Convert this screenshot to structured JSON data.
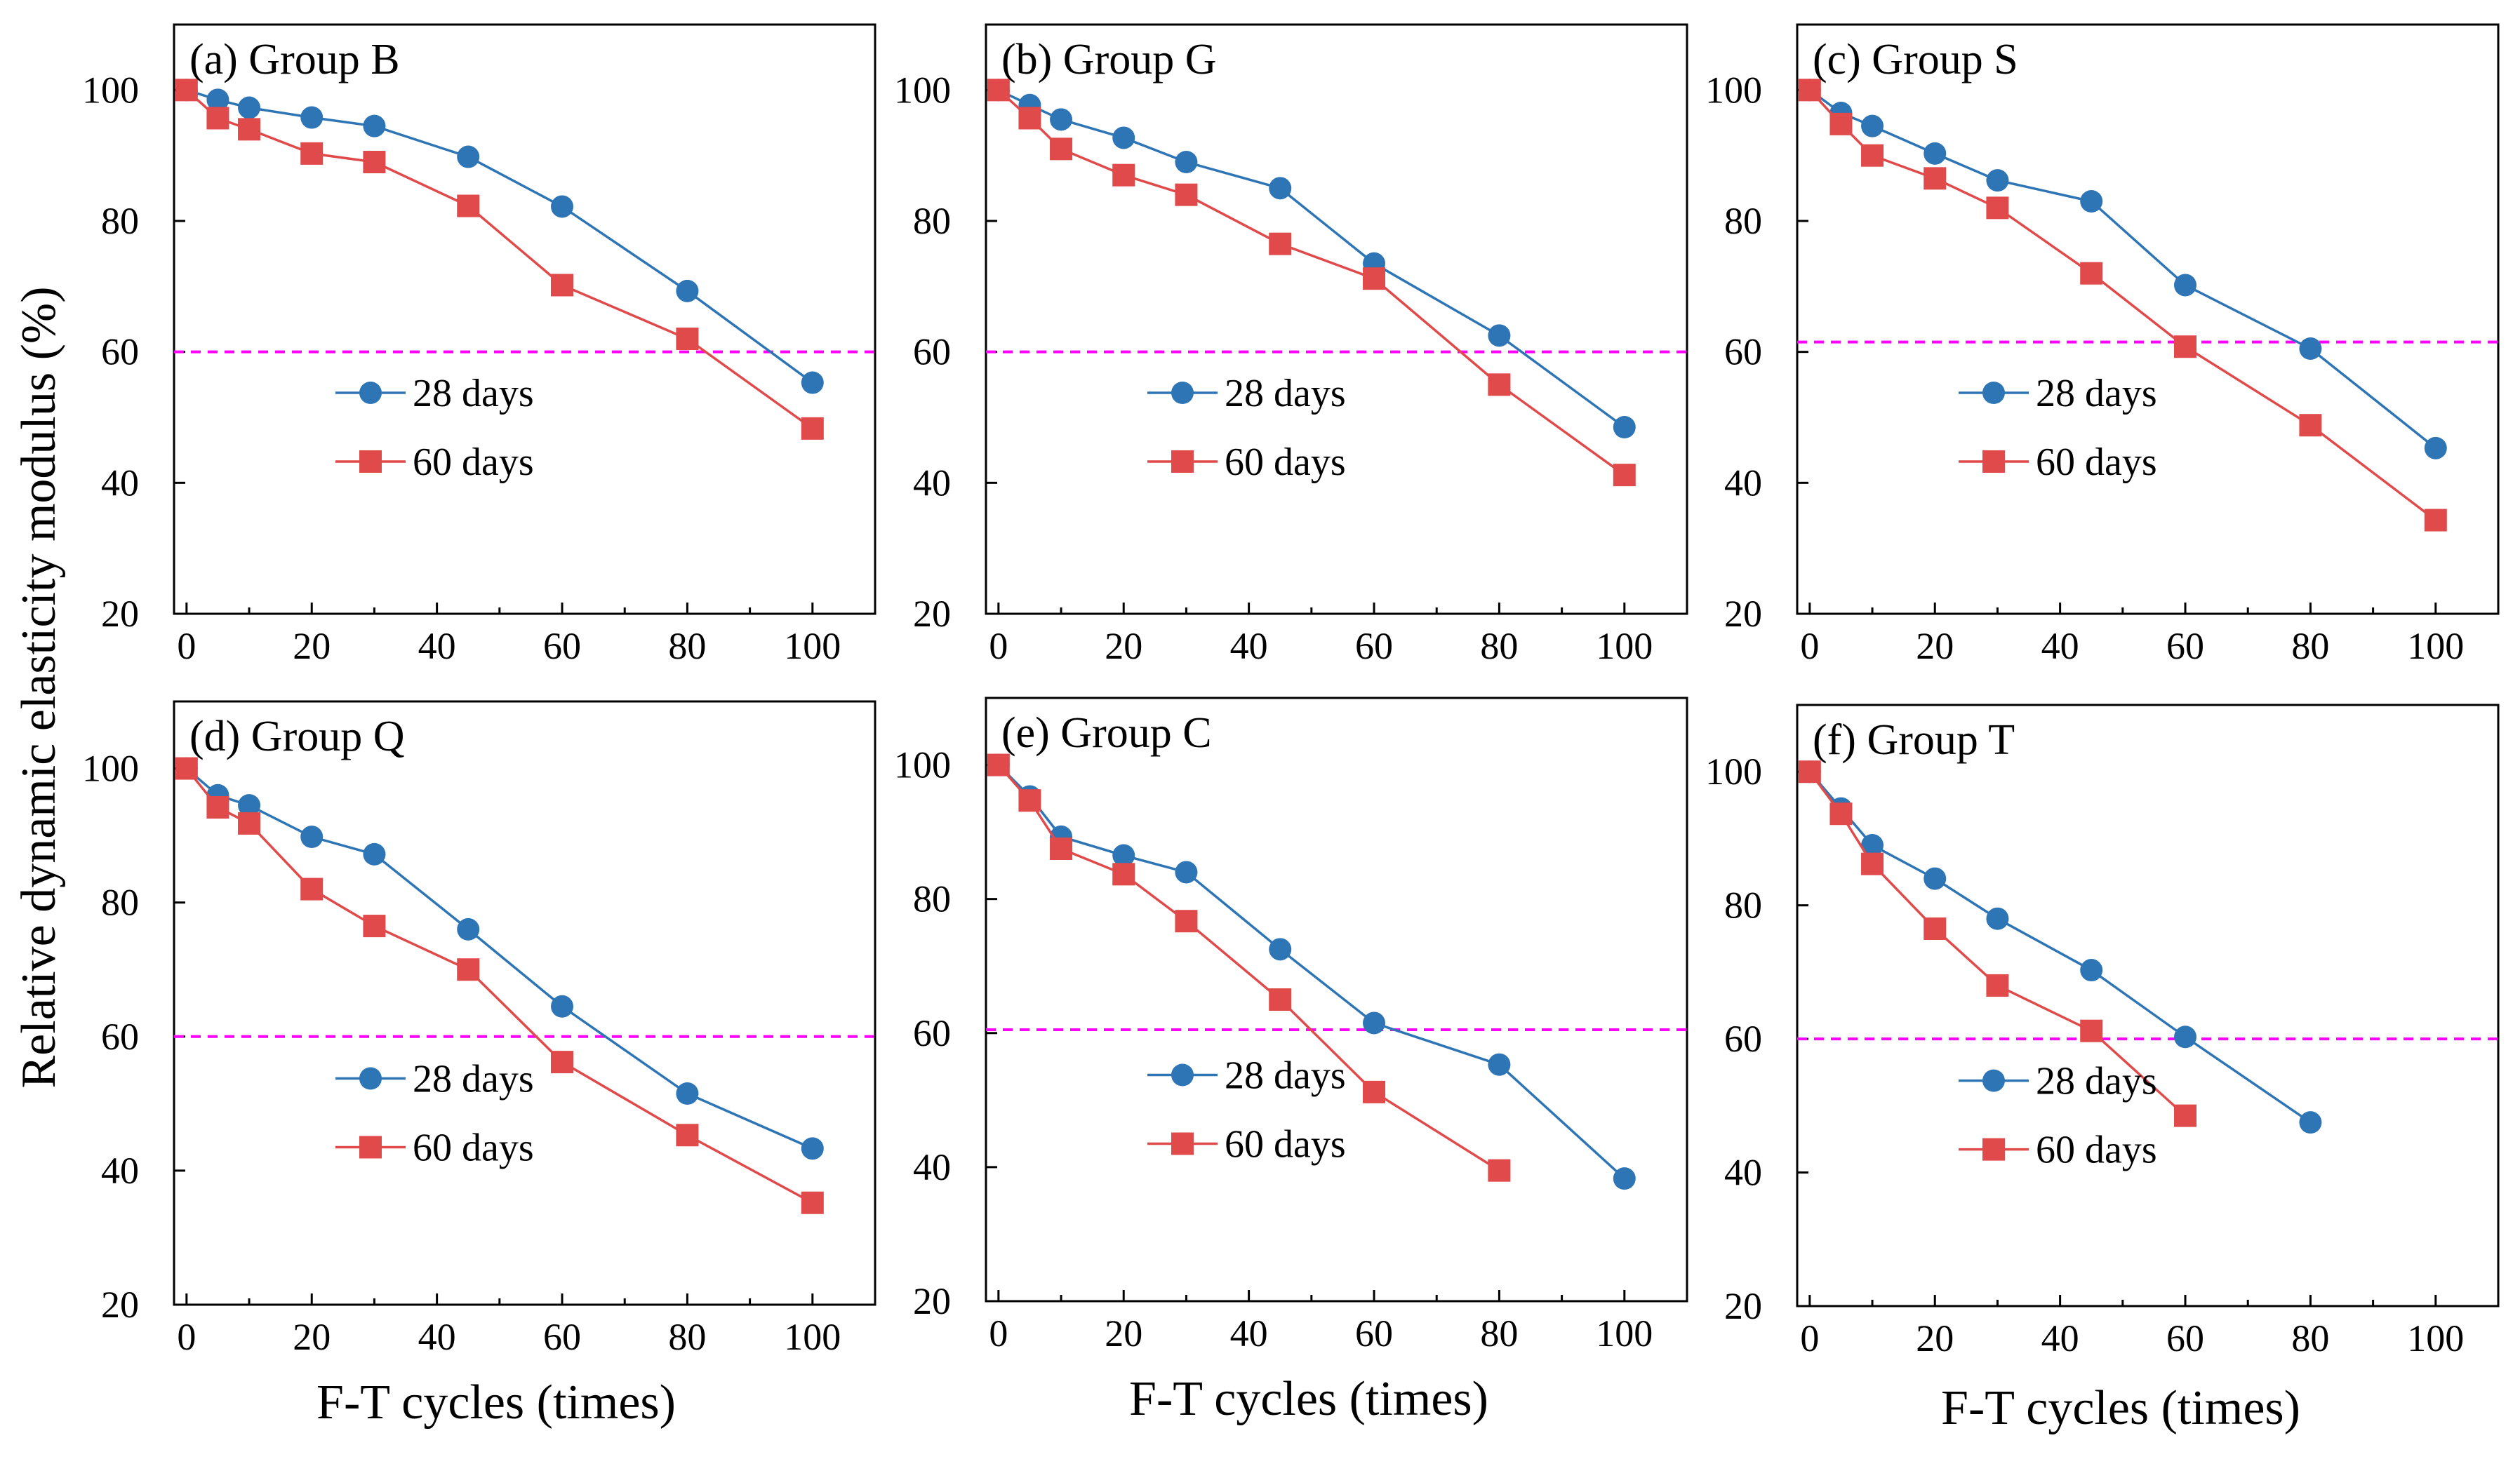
{
  "figure": {
    "ylabel": "Relative dynamic elasticity modulus (%)",
    "xlabel": "F-T cycles (times)"
  },
  "chart_data": [
    {
      "type": "line",
      "title": "(a) Group B",
      "xlabel": "F-T cycles (times)",
      "ylabel": "Relative dynamic elasticity modulus (%)",
      "xlim": [
        -2,
        110
      ],
      "ylim": [
        20,
        110
      ],
      "xticks": [
        0,
        20,
        40,
        60,
        80,
        100
      ],
      "yticks": [
        20,
        40,
        60,
        80,
        100
      ],
      "threshold": 60,
      "series": [
        {
          "name": "28 days",
          "marker": "circle",
          "color": "#2E75B6",
          "x": [
            0,
            5,
            10,
            20,
            30,
            45,
            60,
            80,
            100
          ],
          "values": [
            100,
            98.5,
            97.3,
            95.8,
            94.5,
            89.8,
            82.2,
            69.3,
            55.3
          ]
        },
        {
          "name": "60 days",
          "marker": "square",
          "color": "#E04A4A",
          "x": [
            0,
            5,
            10,
            20,
            30,
            45,
            60,
            80,
            100
          ],
          "values": [
            100,
            95.7,
            94,
            90.3,
            89,
            82.3,
            70.2,
            62,
            48.3
          ]
        }
      ]
    },
    {
      "type": "line",
      "title": "(b) Group G",
      "xlabel": "F-T cycles (times)",
      "ylabel": "Relative dynamic elasticity modulus (%)",
      "xlim": [
        -2,
        110
      ],
      "ylim": [
        20,
        110
      ],
      "xticks": [
        0,
        20,
        40,
        60,
        80,
        100
      ],
      "yticks": [
        20,
        40,
        60,
        80,
        100
      ],
      "threshold": 60,
      "series": [
        {
          "name": "28 days",
          "marker": "circle",
          "color": "#2E75B6",
          "x": [
            0,
            5,
            10,
            20,
            30,
            45,
            60,
            80,
            100
          ],
          "values": [
            100,
            97.7,
            95.5,
            92.7,
            89,
            85,
            73.5,
            62.5,
            48.5
          ]
        },
        {
          "name": "60 days",
          "marker": "square",
          "color": "#E04A4A",
          "x": [
            0,
            5,
            10,
            20,
            30,
            45,
            60,
            80,
            100
          ],
          "values": [
            100,
            95.7,
            91,
            87,
            84,
            76.5,
            71.2,
            55,
            41.2
          ]
        }
      ]
    },
    {
      "type": "line",
      "title": "(c) Group S",
      "xlabel": "F-T cycles (times)",
      "ylabel": "Relative dynamic elasticity modulus (%)",
      "xlim": [
        -2,
        110
      ],
      "ylim": [
        20,
        110
      ],
      "xticks": [
        0,
        20,
        40,
        60,
        80,
        100
      ],
      "yticks": [
        20,
        40,
        60,
        80,
        100
      ],
      "threshold": 61.5,
      "series": [
        {
          "name": "28 days",
          "marker": "circle",
          "color": "#2E75B6",
          "x": [
            0,
            5,
            10,
            20,
            30,
            45,
            60,
            80,
            100
          ],
          "values": [
            100,
            96.5,
            94.5,
            90.3,
            86.2,
            83,
            70.2,
            60.5,
            45.3
          ]
        },
        {
          "name": "60 days",
          "marker": "square",
          "color": "#E04A4A",
          "x": [
            0,
            5,
            10,
            20,
            30,
            45,
            60,
            80,
            100
          ],
          "values": [
            100,
            94.8,
            90,
            86.5,
            82,
            72,
            60.8,
            48.8,
            34.3
          ]
        }
      ]
    },
    {
      "type": "line",
      "title": "(d) Group Q",
      "xlabel": "F-T cycles (times)",
      "ylabel": "Relative dynamic elasticity modulus (%)",
      "xlim": [
        -2,
        110
      ],
      "ylim": [
        20,
        110
      ],
      "xticks": [
        0,
        20,
        40,
        60,
        80,
        100
      ],
      "yticks": [
        20,
        40,
        60,
        80,
        100
      ],
      "threshold": 60,
      "series": [
        {
          "name": "28 days",
          "marker": "circle",
          "color": "#2E75B6",
          "x": [
            0,
            5,
            10,
            20,
            30,
            45,
            60,
            80,
            100
          ],
          "values": [
            100,
            96,
            94.5,
            89.8,
            87.2,
            76,
            64.5,
            51.5,
            43.3
          ]
        },
        {
          "name": "60 days",
          "marker": "square",
          "color": "#E04A4A",
          "x": [
            0,
            5,
            10,
            20,
            30,
            45,
            60,
            80,
            100
          ],
          "values": [
            100,
            94.2,
            91.8,
            82,
            76.5,
            70,
            56.2,
            45.3,
            35.2
          ]
        }
      ]
    },
    {
      "type": "line",
      "title": "(e) Group C",
      "xlabel": "F-T cycles (times)",
      "ylabel": "Relative dynamic elasticity modulus (%)",
      "xlim": [
        -2,
        110
      ],
      "ylim": [
        20,
        110
      ],
      "xticks": [
        0,
        20,
        40,
        60,
        80,
        100
      ],
      "yticks": [
        20,
        40,
        60,
        80,
        100
      ],
      "threshold": 60.5,
      "series": [
        {
          "name": "28 days",
          "marker": "circle",
          "color": "#2E75B6",
          "x": [
            0,
            5,
            10,
            20,
            30,
            45,
            60,
            80,
            100
          ],
          "values": [
            100,
            95.3,
            89.3,
            86.5,
            84,
            72.5,
            61.5,
            55.3,
            38.3
          ]
        },
        {
          "name": "60 days",
          "marker": "square",
          "color": "#E04A4A",
          "x": [
            0,
            5,
            10,
            20,
            30,
            45,
            60,
            80
          ],
          "values": [
            100,
            94.7,
            87.5,
            83.7,
            76.7,
            65,
            51.2,
            39.5
          ]
        }
      ]
    },
    {
      "type": "line",
      "title": "(f) Group T",
      "xlabel": "F-T cycles (times)",
      "ylabel": "Relative dynamic elasticity modulus (%)",
      "xlim": [
        -2,
        110
      ],
      "ylim": [
        20,
        110
      ],
      "xticks": [
        0,
        20,
        40,
        60,
        80,
        100
      ],
      "yticks": [
        20,
        40,
        60,
        80,
        100
      ],
      "threshold": 60,
      "series": [
        {
          "name": "28 days",
          "marker": "circle",
          "color": "#2E75B6",
          "x": [
            0,
            5,
            10,
            20,
            30,
            45,
            60,
            80
          ],
          "values": [
            100,
            94.5,
            89,
            84,
            78,
            70.3,
            60.3,
            47.5
          ]
        },
        {
          "name": "60 days",
          "marker": "square",
          "color": "#E04A4A",
          "x": [
            0,
            5,
            10,
            20,
            30,
            45,
            60
          ],
          "values": [
            100,
            93.7,
            86.2,
            76.5,
            68,
            61.2,
            48.5
          ]
        }
      ]
    }
  ],
  "colors": {
    "series_28": "#2E75B6",
    "series_60": "#E04A4A",
    "threshold": "#FF00FF",
    "axis": "#000000"
  }
}
